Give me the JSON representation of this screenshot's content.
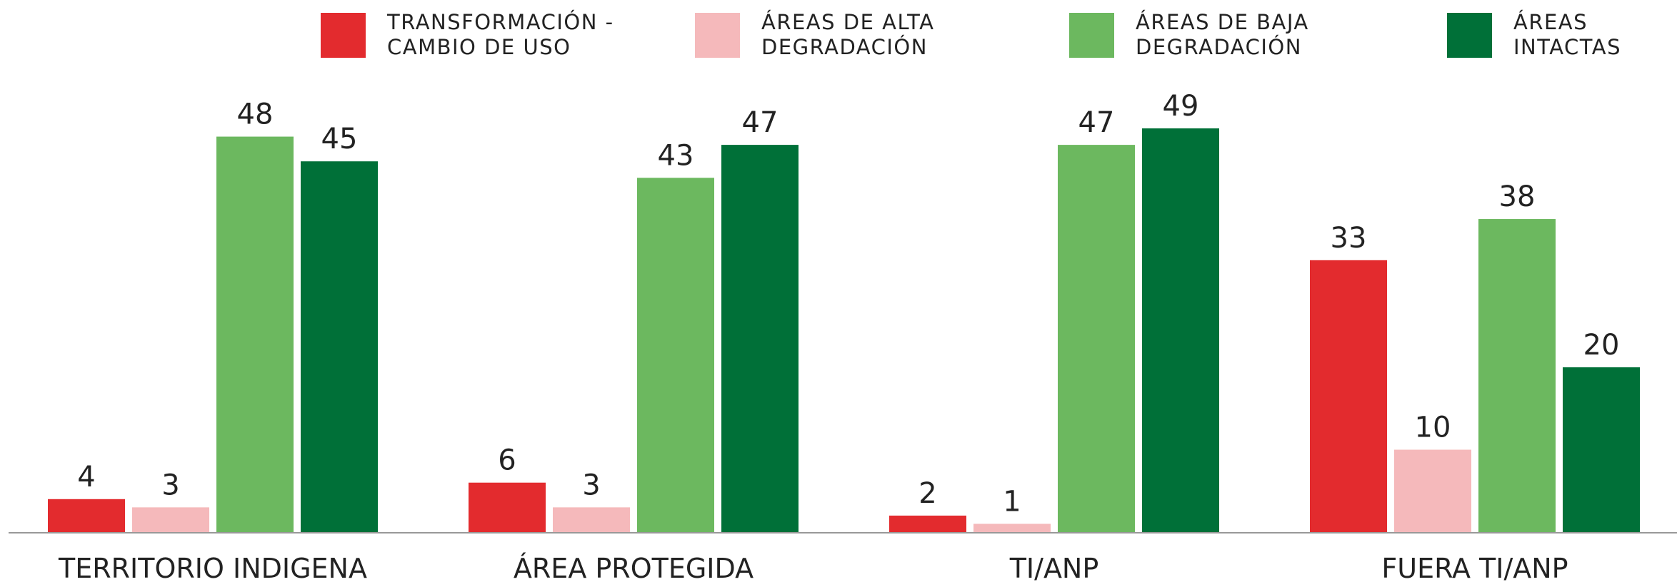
{
  "chart_data": {
    "type": "bar",
    "categories": [
      "TERRITORIO INDIGENA",
      "ÁREA PROTEGIDA",
      "TI/ANP",
      "FUERA TI/ANP"
    ],
    "series": [
      {
        "name": "TRANSFORMACIÓN - CAMBIO DE USO",
        "color": "#e32b2e",
        "values": [
          4,
          6,
          2,
          33
        ]
      },
      {
        "name": "ÁREAS DE ALTA DEGRADACIÓN",
        "color": "#f5b9bb",
        "values": [
          3,
          3,
          1,
          10
        ]
      },
      {
        "name": "ÁREAS DE BAJA DEGRADACIÓN",
        "color": "#6cb85f",
        "values": [
          48,
          43,
          47,
          38
        ]
      },
      {
        "name": "ÁREAS INTACTAS",
        "color": "#007038",
        "values": [
          45,
          47,
          49,
          20
        ]
      }
    ],
    "legend": "top"
  }
}
